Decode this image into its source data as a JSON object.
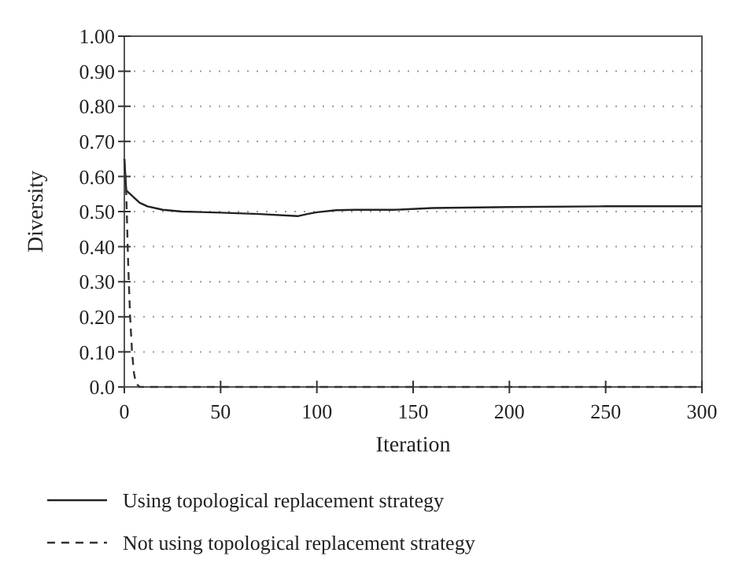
{
  "chart_data": {
    "type": "line",
    "xlabel": "Iteration",
    "ylabel": "Diversity",
    "xlim": [
      0,
      300
    ],
    "xticks": [
      0,
      50,
      100,
      150,
      200,
      250,
      300
    ],
    "ylim": [
      0,
      1
    ],
    "yticks": [
      {
        "value": 0,
        "label": "0.0"
      },
      {
        "value": 0.1,
        "label": "0.10"
      },
      {
        "value": 0.2,
        "label": "0.20"
      },
      {
        "value": 0.3,
        "label": "0.30"
      },
      {
        "value": 0.4,
        "label": "0.40"
      },
      {
        "value": 0.5,
        "label": "0.50"
      },
      {
        "value": 0.6,
        "label": "0.60"
      },
      {
        "value": 0.7,
        "label": "0.70"
      },
      {
        "value": 0.8,
        "label": "0.80"
      },
      {
        "value": 0.9,
        "label": "0.90"
      },
      {
        "value": 1,
        "label": "1.00"
      }
    ],
    "grid": "y",
    "legend": "bottom",
    "series": [
      {
        "name": "Using topological replacement strategy",
        "color": "#222222",
        "line_style": "solid",
        "x": [
          0,
          1,
          3,
          5,
          8,
          12,
          20,
          30,
          50,
          70,
          90,
          95,
          100,
          110,
          120,
          140,
          160,
          200,
          250,
          300
        ],
        "values": [
          0.65,
          0.56,
          0.55,
          0.54,
          0.525,
          0.515,
          0.505,
          0.5,
          0.497,
          0.493,
          0.487,
          0.493,
          0.498,
          0.504,
          0.505,
          0.505,
          0.51,
          0.513,
          0.515,
          0.515
        ]
      },
      {
        "name": "Not using topological replacement strategy",
        "color": "#333333",
        "line_style": "dashed",
        "x": [
          0,
          1,
          2,
          3,
          4,
          5,
          6,
          8,
          20,
          100,
          300
        ],
        "values": [
          0.65,
          0.55,
          0.35,
          0.2,
          0.1,
          0.04,
          0.01,
          0,
          0,
          0,
          0
        ]
      }
    ]
  }
}
